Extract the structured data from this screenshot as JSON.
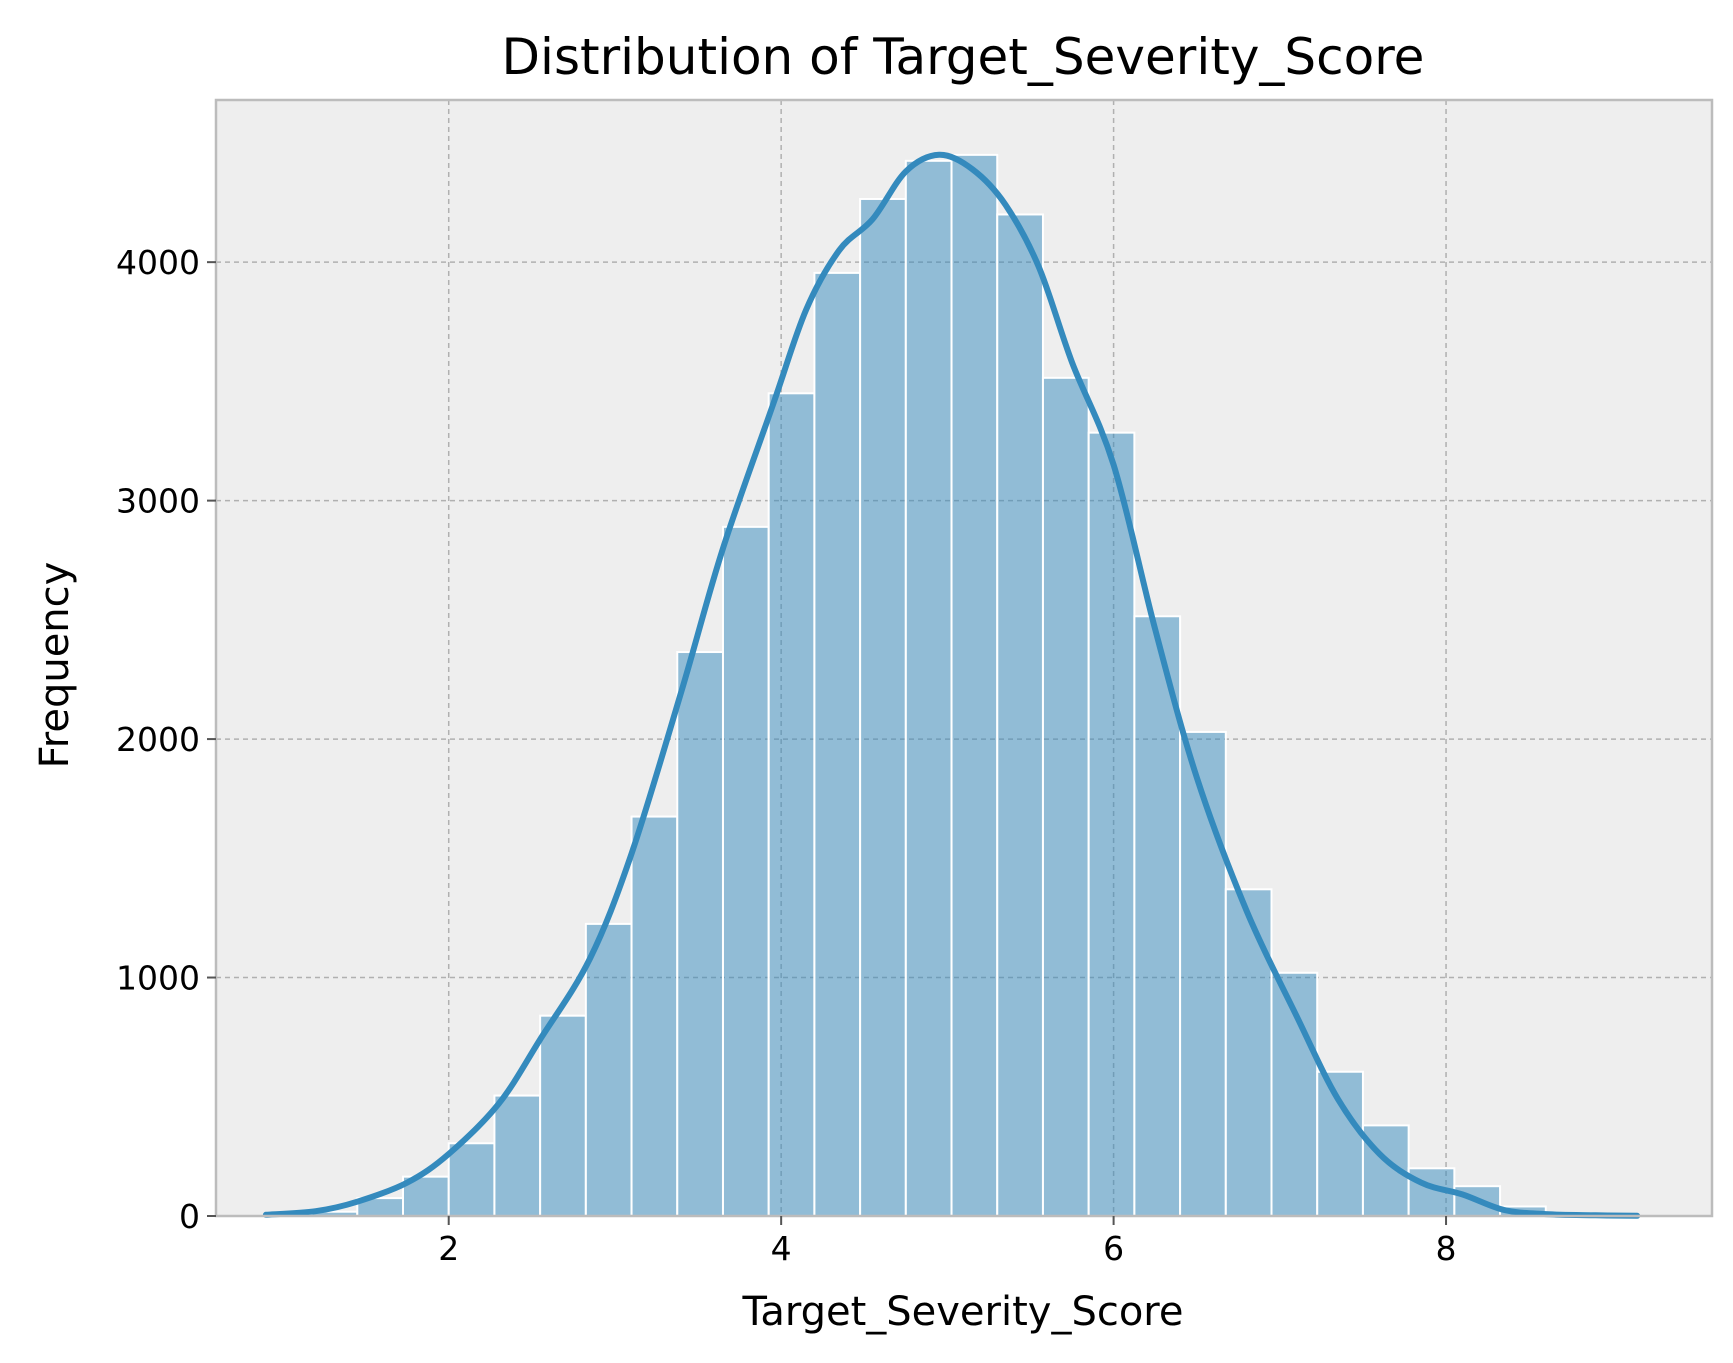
{
  "chart_data": {
    "type": "bar",
    "title": "Distribution of Target_Severity_Score",
    "xlabel": "Target_Severity_Score",
    "ylabel": "Frequency",
    "xlim": [
      0.6,
      9.6
    ],
    "ylim": [
      0,
      4680
    ],
    "xticks": [
      2,
      4,
      6,
      8
    ],
    "yticks": [
      0,
      1000,
      2000,
      3000,
      4000
    ],
    "grid": true,
    "bin_width": 0.275,
    "bin_start": 0.9,
    "bins": [
      {
        "x0": 0.9,
        "x1": 1.175,
        "value": 5
      },
      {
        "x0": 1.175,
        "x1": 1.45,
        "value": 18
      },
      {
        "x0": 1.45,
        "x1": 1.725,
        "value": 75
      },
      {
        "x0": 1.725,
        "x1": 2.0,
        "value": 165
      },
      {
        "x0": 2.0,
        "x1": 2.275,
        "value": 305
      },
      {
        "x0": 2.275,
        "x1": 2.55,
        "value": 505
      },
      {
        "x0": 2.55,
        "x1": 2.825,
        "value": 840
      },
      {
        "x0": 2.825,
        "x1": 3.1,
        "value": 1225
      },
      {
        "x0": 3.1,
        "x1": 3.375,
        "value": 1675
      },
      {
        "x0": 3.375,
        "x1": 3.65,
        "value": 2365
      },
      {
        "x0": 3.65,
        "x1": 3.925,
        "value": 2890
      },
      {
        "x0": 3.925,
        "x1": 4.2,
        "value": 3450
      },
      {
        "x0": 4.2,
        "x1": 4.475,
        "value": 3955
      },
      {
        "x0": 4.475,
        "x1": 4.75,
        "value": 4265
      },
      {
        "x0": 4.75,
        "x1": 5.025,
        "value": 4425
      },
      {
        "x0": 5.025,
        "x1": 5.3,
        "value": 4450
      },
      {
        "x0": 5.3,
        "x1": 5.575,
        "value": 4200
      },
      {
        "x0": 5.575,
        "x1": 5.85,
        "value": 3515
      },
      {
        "x0": 5.85,
        "x1": 6.125,
        "value": 3285
      },
      {
        "x0": 6.125,
        "x1": 6.4,
        "value": 2515
      },
      {
        "x0": 6.4,
        "x1": 6.675,
        "value": 2030
      },
      {
        "x0": 6.675,
        "x1": 6.95,
        "value": 1370
      },
      {
        "x0": 6.95,
        "x1": 7.225,
        "value": 1020
      },
      {
        "x0": 7.225,
        "x1": 7.5,
        "value": 605
      },
      {
        "x0": 7.5,
        "x1": 7.775,
        "value": 380
      },
      {
        "x0": 7.775,
        "x1": 8.05,
        "value": 200
      },
      {
        "x0": 8.05,
        "x1": 8.325,
        "value": 125
      },
      {
        "x0": 8.325,
        "x1": 8.6,
        "value": 40
      },
      {
        "x0": 8.6,
        "x1": 8.875,
        "value": 12
      },
      {
        "x0": 8.875,
        "x1": 9.15,
        "value": 3
      }
    ],
    "kde": {
      "x": [
        0.9,
        1.2,
        1.45,
        1.75,
        2.0,
        2.3,
        2.55,
        2.85,
        3.1,
        3.4,
        3.65,
        3.95,
        4.15,
        4.35,
        4.55,
        4.75,
        4.95,
        5.15,
        5.35,
        5.55,
        5.75,
        6.0,
        6.25,
        6.5,
        6.8,
        7.1,
        7.35,
        7.6,
        7.85,
        8.1,
        8.35,
        8.6,
        8.9,
        9.15
      ],
      "y": [
        5,
        20,
        60,
        140,
        260,
        470,
        740,
        1080,
        1520,
        2200,
        2800,
        3400,
        3800,
        4050,
        4180,
        4380,
        4450,
        4390,
        4240,
        3980,
        3580,
        3150,
        2460,
        1840,
        1280,
        840,
        490,
        260,
        140,
        90,
        25,
        8,
        3,
        1
      ]
    },
    "colors": {
      "bar": "#348abd",
      "line": "#348abd",
      "background": "#eeeeee",
      "frame": "#bcbcbc"
    }
  }
}
